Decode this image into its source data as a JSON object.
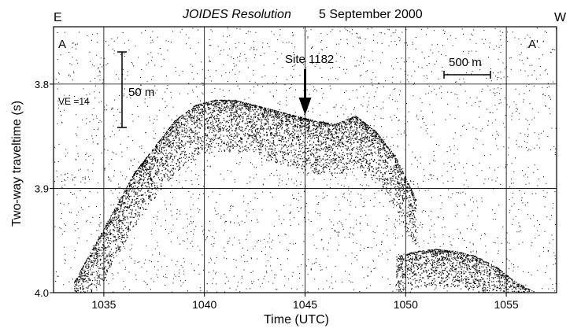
{
  "header": {
    "vessel": "JOIDES Resolution",
    "date": "5 September 2000",
    "left_dir": "E",
    "right_dir": "W"
  },
  "chart_data": {
    "type": "scatter",
    "title": "JOIDES Resolution   5 September 2000",
    "xlabel": "Time (UTC)",
    "ylabel": "Two-way traveltime (s)",
    "xlim": [
      1032.5,
      1057.5
    ],
    "ylim": [
      4.0,
      3.745
    ],
    "y_inverted": true,
    "grid": true,
    "x_ticks": [
      1035,
      1040,
      1045,
      1050,
      1055
    ],
    "x_tick_labels": [
      "1035",
      "1040",
      "1045",
      "1050",
      "1055"
    ],
    "y_ticks": [
      3.8,
      3.9,
      4.0
    ],
    "y_tick_labels": [
      "3.8",
      "3.9",
      "4.0"
    ],
    "reflector_seafloor": {
      "x": [
        1033.5,
        1034.5,
        1035.5,
        1036.5,
        1037.5,
        1038.5,
        1039.5,
        1040.5,
        1041.5,
        1042.5,
        1043.5,
        1044.5,
        1045.5,
        1046.5,
        1047.5,
        1048.5,
        1049.5,
        1050.5
      ],
      "y": [
        3.99,
        3.955,
        3.92,
        3.885,
        3.86,
        3.835,
        3.82,
        3.815,
        3.815,
        3.82,
        3.825,
        3.83,
        3.835,
        3.838,
        3.83,
        3.845,
        3.87,
        3.91
      ]
    },
    "reflector_secondary": {
      "x": [
        1049.5,
        1050.5,
        1051.5,
        1052.5,
        1053.5,
        1054.5,
        1055.5,
        1056.5
      ],
      "y": [
        3.965,
        3.96,
        3.958,
        3.96,
        3.965,
        3.975,
        3.99,
        4.0
      ]
    },
    "annotations": {
      "profile_start": "A",
      "profile_end": "A'",
      "site_label": "Site 1182",
      "site_time": 1045,
      "vertical_scale_label": "50 m",
      "horizontal_scale_label": "500 m",
      "ve_label": "VE =14"
    }
  }
}
